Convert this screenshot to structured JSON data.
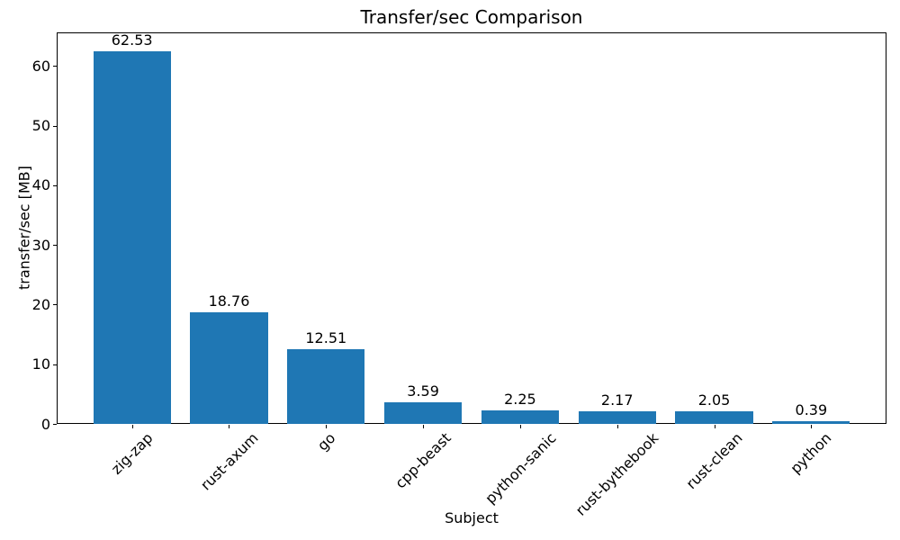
{
  "chart_data": {
    "type": "bar",
    "title": "Transfer/sec Comparison",
    "xlabel": "Subject",
    "ylabel": "transfer/sec [MB]",
    "categories": [
      "zig-zap",
      "rust-axum",
      "go",
      "cpp-beast",
      "python-sanic",
      "rust-bythebook",
      "rust-clean",
      "python"
    ],
    "values": [
      62.53,
      18.76,
      12.51,
      3.59,
      2.25,
      2.17,
      2.05,
      0.39
    ],
    "value_labels": [
      "62.53",
      "18.76",
      "12.51",
      "3.59",
      "2.25",
      "2.17",
      "2.05",
      "0.39"
    ],
    "yticks": [
      "0",
      "10",
      "20",
      "30",
      "40",
      "50",
      "60"
    ],
    "ytick_values": [
      0,
      10,
      20,
      30,
      40,
      50,
      60
    ],
    "ylim": [
      0,
      65.66
    ],
    "bar_color": "#1f77b4",
    "axis_color": "#000000",
    "background_color": "#ffffff",
    "grid": false,
    "legend": null,
    "x_tick_rotation_deg": 45,
    "bar_value_labels_shown": true
  }
}
